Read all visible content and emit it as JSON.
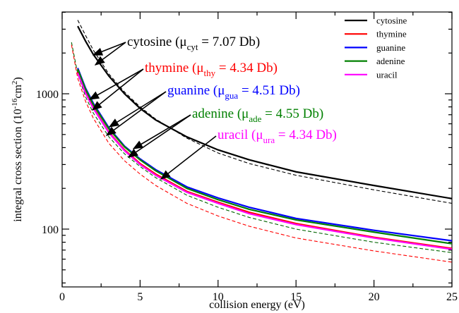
{
  "chart_data": {
    "type": "line",
    "xlabel": "collision energy (eV)",
    "ylabel": {
      "text": "integral cross section (10",
      "exp": "-16",
      "unit": "cm",
      "unit_exp": "2",
      "close": ")"
    },
    "xlim": [
      0,
      25
    ],
    "xticks": [
      0,
      5,
      10,
      15,
      20,
      25
    ],
    "xminor": [
      2.5,
      7.5,
      12.5,
      17.5,
      22.5
    ],
    "ylim": [
      37.4,
      4020
    ],
    "yscale": "log",
    "yticks": [
      100,
      1000
    ],
    "yminor": [
      40,
      50,
      60,
      70,
      80,
      90,
      200,
      300,
      400,
      500,
      600,
      700,
      800,
      900,
      2000,
      3000,
      4000
    ],
    "legend": "upper right",
    "series": [
      {
        "name": "cytosine",
        "color": "#000000",
        "x": [
          1,
          1.5,
          2,
          3,
          4,
          5,
          6,
          8,
          10,
          12,
          15,
          20,
          25
        ],
        "values": [
          3160,
          2450,
          1950,
          1350,
          1000,
          780,
          640,
          480,
          385,
          325,
          265,
          210,
          168
        ]
      },
      {
        "name": "thymine",
        "color": "#ff0000",
        "x": [
          1,
          1.5,
          2,
          3,
          4,
          5,
          6,
          8,
          10,
          12,
          15,
          20,
          25
        ],
        "values": [
          1450,
          1030,
          790,
          520,
          385,
          305,
          255,
          190,
          158,
          133,
          110,
          87,
          72
        ]
      },
      {
        "name": "guanine",
        "color": "#0000ff",
        "x": [
          1,
          1.5,
          2,
          3,
          4,
          5,
          6,
          8,
          10,
          12,
          15,
          20,
          25
        ],
        "values": [
          1550,
          1100,
          850,
          560,
          410,
          330,
          275,
          205,
          170,
          145,
          120,
          98,
          82
        ]
      },
      {
        "name": "adenine",
        "color": "#008000",
        "x": [
          1,
          1.5,
          2,
          3,
          4,
          5,
          6,
          8,
          10,
          12,
          15,
          20,
          25
        ],
        "values": [
          1520,
          1080,
          830,
          550,
          405,
          325,
          270,
          200,
          165,
          140,
          117,
          95,
          78
        ]
      },
      {
        "name": "uracil",
        "color": "#ff00ff",
        "x": [
          1,
          1.5,
          2,
          3,
          4,
          5,
          6,
          8,
          10,
          12,
          15,
          20,
          25
        ],
        "values": [
          1420,
          1010,
          780,
          515,
          380,
          300,
          250,
          187,
          155,
          130,
          108,
          86,
          71
        ]
      },
      {
        "color": "#000000",
        "dashed": true,
        "x": [
          1,
          1.5,
          2,
          3,
          4,
          5,
          6,
          8,
          10,
          12,
          15,
          20,
          25
        ],
        "values": [
          3500,
          2700,
          2100,
          1400,
          1030,
          800,
          650,
          470,
          365,
          305,
          250,
          195,
          155
        ]
      },
      {
        "color": "#006400",
        "dashed": true,
        "x": [
          0.6,
          1,
          1.5,
          2,
          3,
          4,
          5,
          6,
          8,
          10,
          12,
          15,
          20,
          25
        ],
        "values": [
          2400,
          1400,
          950,
          720,
          480,
          360,
          290,
          240,
          178,
          145,
          122,
          100,
          80,
          67
        ]
      },
      {
        "color": "#ff0000",
        "dashed": true,
        "x": [
          0.6,
          1,
          1.5,
          2,
          3,
          4,
          5,
          6,
          8,
          10,
          12,
          15,
          20,
          25
        ],
        "values": [
          2300,
          1300,
          880,
          660,
          430,
          320,
          255,
          210,
          155,
          125,
          105,
          86,
          69,
          57
        ]
      }
    ],
    "annotations": [
      {
        "text": "cytosine (μ",
        "sub": "cyt",
        "tail": " = 7.07 Db)",
        "color": "#000000"
      },
      {
        "text": "thymine (μ",
        "sub": "thy",
        "tail": " = 4.34 Db)",
        "color": "#ff0000"
      },
      {
        "text": "guanine (μ",
        "sub": "gua",
        "tail": " = 4.51 Db)",
        "color": "#0000ff"
      },
      {
        "text": "adenine (μ",
        "sub": "ade",
        "tail": " = 4.55 Db)",
        "color": "#008000"
      },
      {
        "text": "uracil (μ",
        "sub": "ura",
        "tail": " = 4.34 Db)",
        "color": "#ff00ff"
      }
    ]
  }
}
